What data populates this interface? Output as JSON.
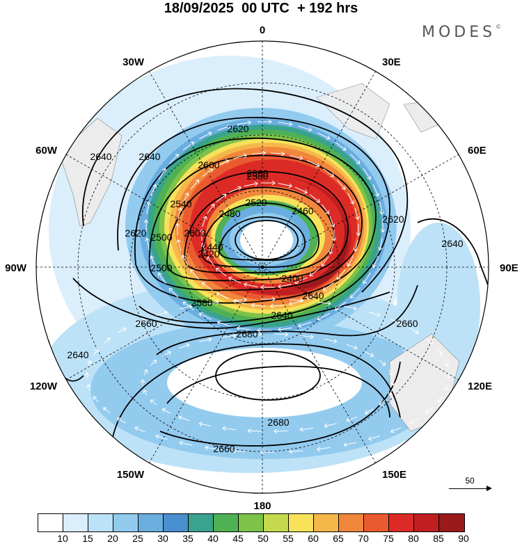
{
  "title": "18/09/2025  00 UTC  + 192 hrs",
  "brand": {
    "name": "MODES",
    "mark": "©"
  },
  "longitude_labels": {
    "n0": "0",
    "n30e": "30E",
    "n60e": "60E",
    "n90e": "90E",
    "n120e": "120E",
    "n150e": "150E",
    "n180": "180",
    "n150w": "150W",
    "n120w": "120W",
    "n90w": "90W",
    "n60w": "60W",
    "n30w": "30W"
  },
  "contour_labels": [
    "2620",
    "2640",
    "2640",
    "2600",
    "2580",
    "2560",
    "2540",
    "2520",
    "2500",
    "2480",
    "2460",
    "2440",
    "2420",
    "2400",
    "2640",
    "2660",
    "2680",
    "2680",
    "2660",
    "2660",
    "2640",
    "2620",
    "2640",
    "2600",
    "2620",
    "2500",
    "2580",
    "2640"
  ],
  "wind_scale": {
    "label": "50"
  },
  "colorbar": {
    "colors": [
      "#ffffff",
      "#dbeefb",
      "#bde2f7",
      "#93cbef",
      "#6aaee0",
      "#4a8fcf",
      "#3aa38e",
      "#4fb153",
      "#7ec24a",
      "#c4d94e",
      "#f7e25a",
      "#f6b74a",
      "#f1873c",
      "#ea5a30",
      "#dc2b26",
      "#c01f22",
      "#9a1a1c"
    ],
    "labels": [
      "10",
      "15",
      "20",
      "25",
      "30",
      "35",
      "40",
      "45",
      "50",
      "55",
      "60",
      "65",
      "70",
      "75",
      "80",
      "85",
      "90"
    ]
  }
}
